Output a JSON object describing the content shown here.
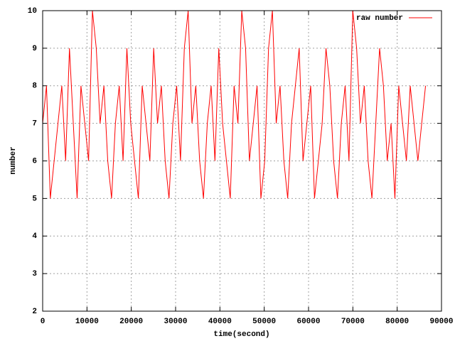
{
  "chart_data": {
    "type": "line",
    "x_label": "time(second)",
    "y_label": "number",
    "x": [
      0,
      864,
      1728,
      2592,
      3456,
      4320,
      5184,
      6048,
      6912,
      7776,
      8640,
      9504,
      10368,
      11232,
      12096,
      12960,
      13824,
      14688,
      15552,
      16416,
      17280,
      18144,
      19008,
      19872,
      20736,
      21600,
      22464,
      23328,
      24192,
      25056,
      25920,
      26784,
      27648,
      28512,
      29376,
      30240,
      31104,
      31968,
      32832,
      33696,
      34560,
      35424,
      36288,
      37152,
      38016,
      38880,
      39744,
      40608,
      41472,
      42336,
      43200,
      44064,
      44928,
      45792,
      46656,
      47520,
      48384,
      49248,
      50112,
      50976,
      51840,
      52704,
      53568,
      54432,
      55296,
      56160,
      57024,
      57888,
      58752,
      59616,
      60480,
      61344,
      62208,
      63072,
      63936,
      64800,
      65664,
      66528,
      67392,
      68256,
      69120,
      69984,
      70848,
      71712,
      72576,
      73440,
      74304,
      75168,
      76032,
      76896,
      77760,
      78624,
      79488,
      80352,
      81216,
      82080,
      82944,
      83808,
      84672,
      85536,
      86400
    ],
    "series": [
      {
        "name": "raw number",
        "color": "#ff0000",
        "values": [
          7,
          8,
          5,
          6,
          7,
          8,
          6,
          9,
          7,
          5,
          8,
          7,
          6,
          10,
          9,
          7,
          8,
          6,
          5,
          7,
          8,
          6,
          9,
          7,
          6,
          5,
          8,
          7,
          6,
          9,
          7,
          8,
          6,
          5,
          7,
          8,
          6,
          9,
          10,
          7,
          8,
          6,
          5,
          7,
          8,
          6,
          9,
          7,
          6,
          5,
          8,
          7,
          10,
          9,
          6,
          7,
          8,
          5,
          6,
          9,
          10,
          7,
          8,
          6,
          5,
          7,
          8,
          9,
          6,
          7,
          8,
          5,
          6,
          7,
          9,
          8,
          6,
          5,
          7,
          8,
          6,
          10,
          9,
          7,
          8,
          6,
          5,
          7,
          9,
          8,
          6,
          7,
          5,
          8,
          7,
          6,
          8,
          7,
          6,
          7,
          8
        ]
      }
    ],
    "xlim": [
      0,
      90000
    ],
    "xticks": [
      0,
      10000,
      20000,
      30000,
      40000,
      50000,
      60000,
      70000,
      80000,
      90000
    ],
    "ylim": [
      2,
      10
    ],
    "yticks": [
      2,
      3,
      4,
      5,
      6,
      7,
      8,
      9,
      10
    ],
    "grid": true,
    "legend": "top-right"
  }
}
